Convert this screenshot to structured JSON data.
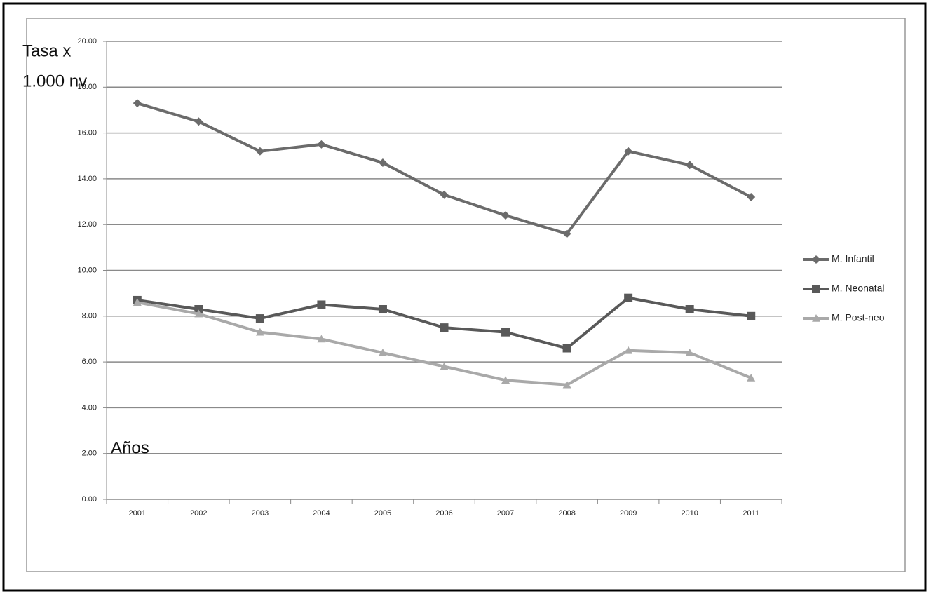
{
  "chart_data": {
    "type": "line",
    "ylabel": [
      "Tasa x",
      "1.000 nv"
    ],
    "xlabel": "Años",
    "categories": [
      "2001",
      "2002",
      "2003",
      "2004",
      "2005",
      "2006",
      "2007",
      "2008",
      "2009",
      "2010",
      "2011"
    ],
    "series": [
      {
        "name": "M. Infantil",
        "color": "#6b6b6b",
        "marker": "diamond",
        "values": [
          17.3,
          16.5,
          15.2,
          15.5,
          14.7,
          13.3,
          12.4,
          11.6,
          15.2,
          14.6,
          13.2
        ]
      },
      {
        "name": "M. Neonatal",
        "color": "#595959",
        "marker": "square",
        "values": [
          8.7,
          8.3,
          7.9,
          8.5,
          8.3,
          7.5,
          7.3,
          6.6,
          8.8,
          8.3,
          8.0
        ]
      },
      {
        "name": "M. Post-neo",
        "color": "#a9a9a9",
        "marker": "triangle",
        "values": [
          8.6,
          8.1,
          7.3,
          7.0,
          6.4,
          5.8,
          5.2,
          5.0,
          6.5,
          6.4,
          5.3
        ]
      }
    ],
    "ylim": [
      0,
      20
    ],
    "yticks": [
      {
        "value": 0,
        "label": "0.00"
      },
      {
        "value": 2,
        "label": "2.00"
      },
      {
        "value": 4,
        "label": "4.00"
      },
      {
        "value": 6,
        "label": "6.00"
      },
      {
        "value": 8,
        "label": "8.00"
      },
      {
        "value": 10,
        "label": "10.00"
      },
      {
        "value": 12,
        "label": "12.00"
      },
      {
        "value": 14,
        "label": "14.00"
      },
      {
        "value": 16,
        "label": "16.00"
      },
      {
        "value": 18,
        "label": "18.00"
      },
      {
        "value": 20,
        "label": "20.00"
      }
    ],
    "grid": true,
    "legend": "right"
  }
}
